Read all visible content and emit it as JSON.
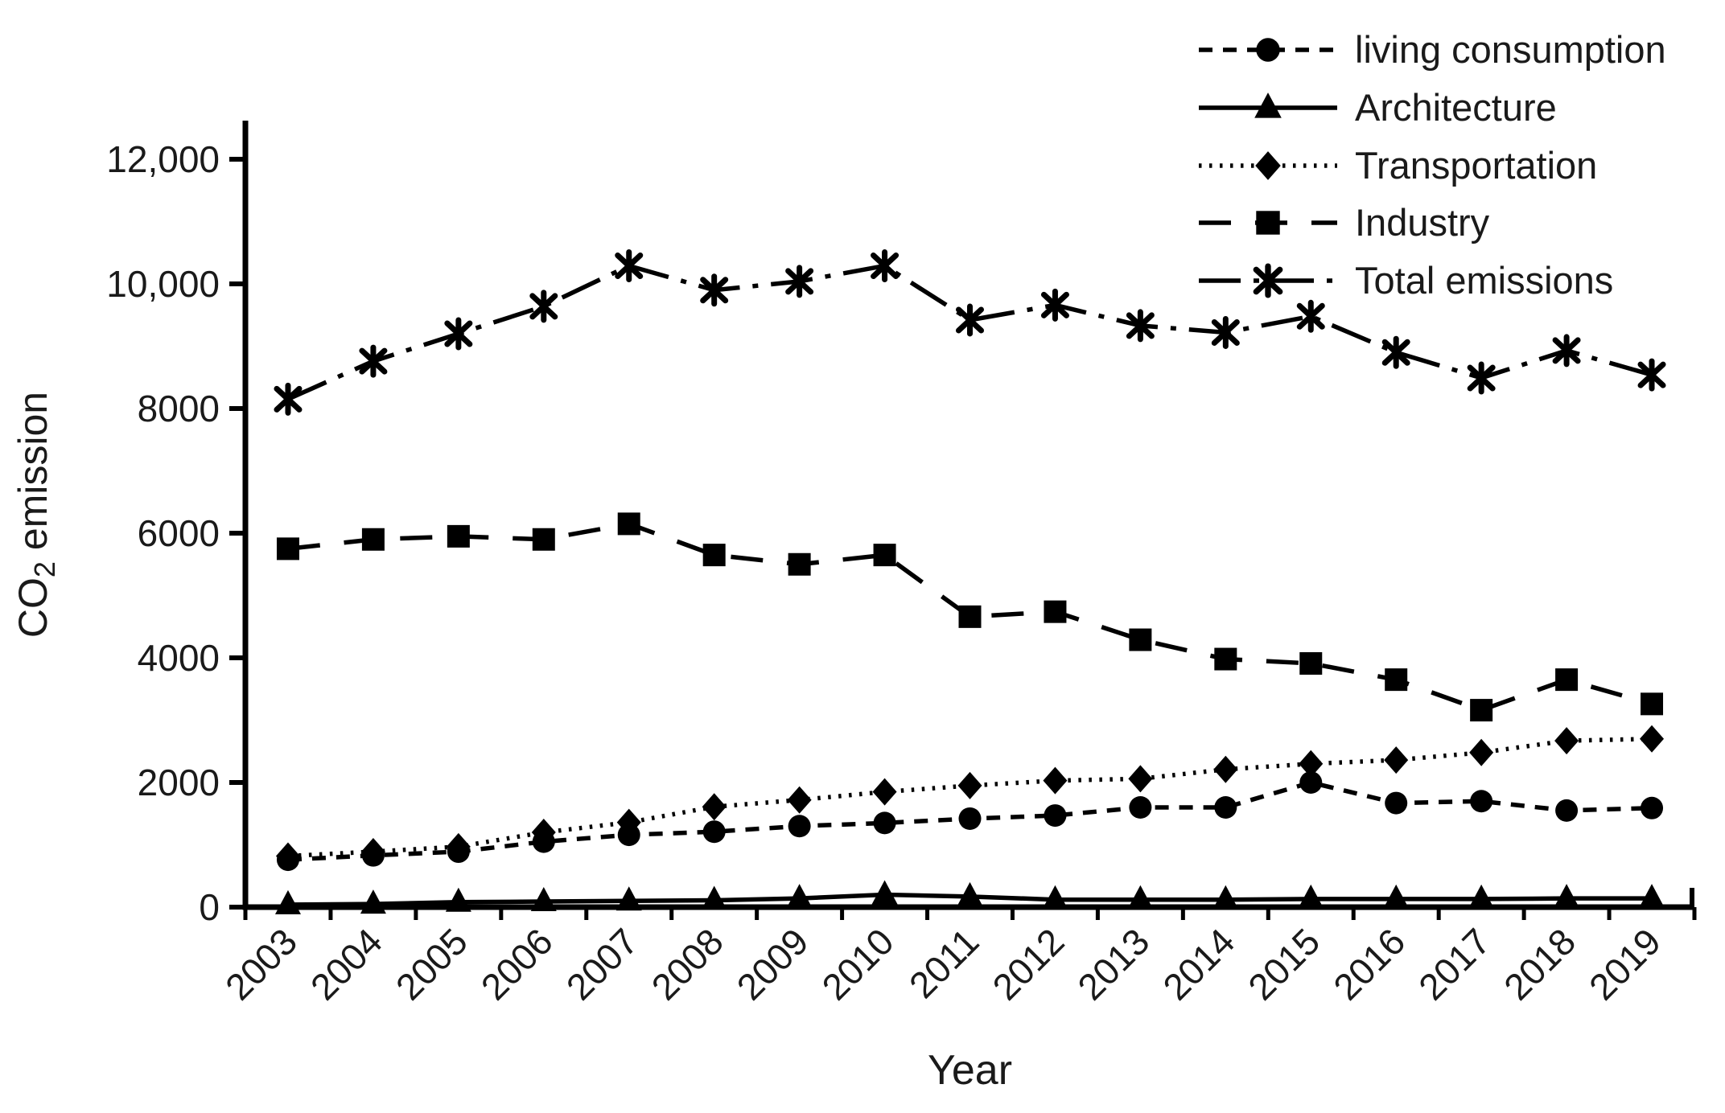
{
  "figure": {
    "background": "#ffffff",
    "ink": "#000000",
    "text_color": "#1a1a1a"
  },
  "axes": {
    "y": {
      "title_main": "CO",
      "title_sub": "2",
      "title_rest": " emission",
      "tick_labels": [
        "0",
        "2000",
        "4000",
        "6000",
        "8000",
        "10,000",
        "12,000"
      ],
      "tick_values": [
        0,
        2000,
        4000,
        6000,
        8000,
        10000,
        12000
      ]
    },
    "x": {
      "title": "Year",
      "tick_labels": [
        "2003",
        "2004",
        "2005",
        "2006",
        "2007",
        "2008",
        "2009",
        "2010",
        "2011",
        "2012",
        "2013",
        "2014",
        "2015",
        "2016",
        "2017",
        "2018",
        "2019"
      ]
    }
  },
  "legend": {
    "items": [
      {
        "label": "living consumption",
        "marker": "circle",
        "line_style": "dashed"
      },
      {
        "label": "Architecture",
        "marker": "triangle",
        "line_style": "solid"
      },
      {
        "label": "Transportation",
        "marker": "diamond",
        "line_style": "dotted"
      },
      {
        "label": "Industry",
        "marker": "square",
        "line_style": "long-dash"
      },
      {
        "label": "Total emissions",
        "marker": "star",
        "line_style": "dash-dot"
      }
    ]
  },
  "chart_data": {
    "type": "line",
    "title": "",
    "xlabel": "Year",
    "ylabel": "CO2 emission",
    "ylim": [
      0,
      12000
    ],
    "grid": false,
    "legend_position": "top-right",
    "categories": [
      2003,
      2004,
      2005,
      2006,
      2007,
      2008,
      2009,
      2010,
      2011,
      2012,
      2013,
      2014,
      2015,
      2016,
      2017,
      2018,
      2019
    ],
    "series": [
      {
        "name": "living consumption",
        "marker": "circle",
        "line_style": "dashed",
        "values": [
          760,
          830,
          890,
          1050,
          1160,
          1210,
          1300,
          1350,
          1420,
          1470,
          1600,
          1600,
          2000,
          1670,
          1700,
          1550,
          1590
        ]
      },
      {
        "name": "Architecture",
        "marker": "triangle",
        "line_style": "solid",
        "values": [
          40,
          50,
          80,
          90,
          100,
          110,
          140,
          200,
          170,
          120,
          120,
          120,
          130,
          130,
          130,
          140,
          140
        ]
      },
      {
        "name": "Transportation",
        "marker": "diamond",
        "line_style": "dotted",
        "values": [
          820,
          890,
          970,
          1200,
          1360,
          1610,
          1720,
          1850,
          1950,
          2030,
          2060,
          2210,
          2300,
          2360,
          2480,
          2670,
          2700
        ]
      },
      {
        "name": "Industry",
        "marker": "square",
        "line_style": "long-dash",
        "values": [
          5750,
          5900,
          5950,
          5900,
          6150,
          5650,
          5500,
          5650,
          4660,
          4740,
          4290,
          3980,
          3910,
          3650,
          3160,
          3650,
          3260
        ]
      },
      {
        "name": "Total emissions",
        "marker": "star",
        "line_style": "dash-dot",
        "values": [
          8150,
          8760,
          9200,
          9640,
          10290,
          9900,
          10040,
          10290,
          9420,
          9660,
          9330,
          9220,
          9480,
          8900,
          8490,
          8930,
          8540
        ]
      }
    ]
  }
}
